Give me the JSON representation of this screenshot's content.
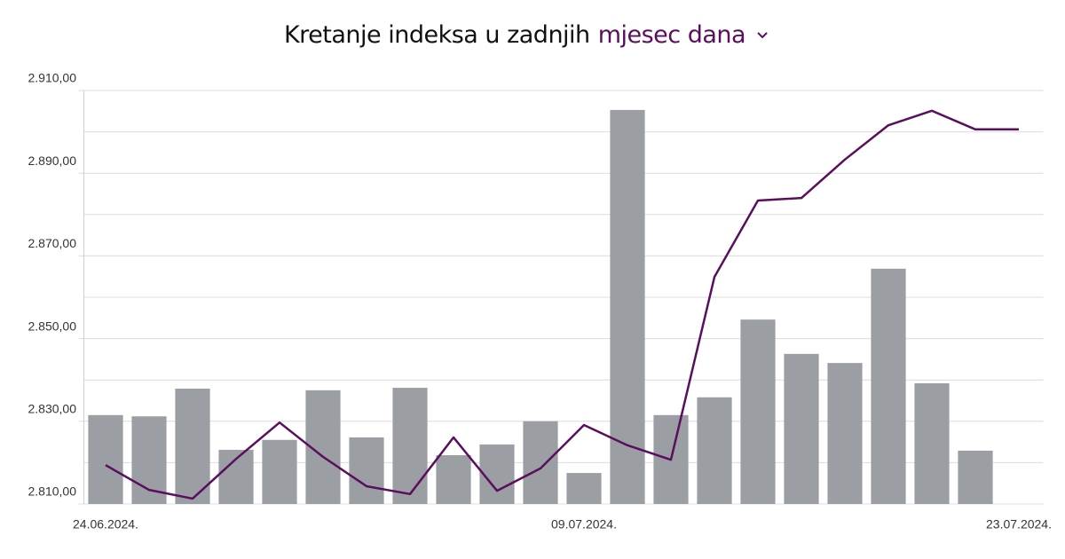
{
  "chart_data": {
    "type": "combo",
    "title": "Kretanje indeksa u zadnjih",
    "period_selector": "mjesec dana",
    "categories": [
      "24.06.2024.",
      null,
      null,
      null,
      null,
      null,
      null,
      null,
      null,
      null,
      null,
      "09.07.2024.",
      null,
      null,
      null,
      null,
      null,
      null,
      null,
      null,
      null,
      "23.07.2024."
    ],
    "series": [
      {
        "type": "bar",
        "color": "#9b9fa4",
        "values": [
          2831.5,
          2831.2,
          2837.9,
          2823.1,
          2825.5,
          2837.5,
          2826.1,
          2838.1,
          2821.8,
          2824.4,
          2830.0,
          2817.5,
          2905.3,
          2831.5,
          2835.8,
          2854.6,
          2846.3,
          2844.1,
          2866.9,
          2839.2,
          2822.9,
          null
        ]
      },
      {
        "type": "line",
        "color": "#5a0f5e",
        "values": [
          2819.4,
          2813.4,
          2811.3,
          2820.9,
          2829.7,
          2821.4,
          2814.3,
          2812.4,
          2826.1,
          2813.2,
          2818.6,
          2829.1,
          2824.2,
          2820.7,
          2864.9,
          2883.4,
          2884.0,
          2893.3,
          2901.6,
          2905.1,
          2900.6,
          2900.6
        ]
      }
    ],
    "ylim": [
      2810,
      2910
    ],
    "yticks": [
      {
        "value": 2810,
        "label": "2.810,00"
      },
      {
        "value": 2830,
        "label": "2.830,00"
      },
      {
        "value": 2850,
        "label": "2.850,00"
      },
      {
        "value": 2870,
        "label": "2.870,00"
      },
      {
        "value": 2890,
        "label": "2.890,00"
      },
      {
        "value": 2910,
        "label": "2.910,00"
      }
    ],
    "minor_yticks": [
      2820,
      2840,
      2860,
      2880,
      2900
    ],
    "grid": true
  }
}
